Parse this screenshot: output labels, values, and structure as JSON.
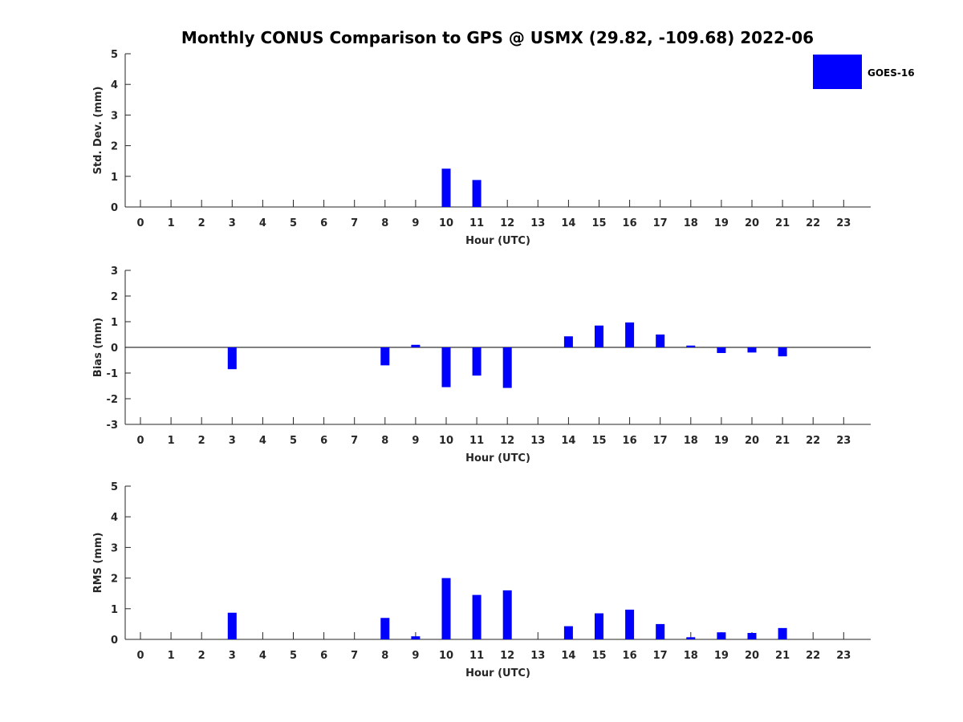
{
  "title": "Monthly CONUS Comparison to GPS @ USMX (29.82, -109.68) 2022-06",
  "legend": {
    "label": "GOES-16",
    "color": "#0000ff",
    "placement": "top-right"
  },
  "chart_data": [
    {
      "type": "bar",
      "xlabel": "Hour (UTC)",
      "ylabel": "Std. Dev. (mm)",
      "ylim": [
        0,
        5
      ],
      "yticks": [
        "0",
        "1",
        "2",
        "3",
        "4",
        "5"
      ],
      "xticks": [
        "0",
        "1",
        "2",
        "3",
        "4",
        "5",
        "6",
        "7",
        "8",
        "9",
        "10",
        "11",
        "12",
        "13",
        "14",
        "15",
        "16",
        "17",
        "18",
        "19",
        "20",
        "21",
        "22",
        "23"
      ],
      "series": [
        {
          "name": "GOES-16",
          "color": "#0000ff",
          "values": [
            null,
            null,
            null,
            0,
            null,
            null,
            null,
            null,
            0,
            0,
            1.25,
            0.88,
            0,
            null,
            0,
            0,
            0,
            0,
            0,
            0,
            0,
            0,
            null,
            null
          ]
        }
      ]
    },
    {
      "type": "bar",
      "xlabel": "Hour (UTC)",
      "ylabel": "Bias (mm)",
      "ylim": [
        -3,
        3
      ],
      "yticks": [
        "-3",
        "-2",
        "-1",
        "0",
        "1",
        "2",
        "3"
      ],
      "xticks": [
        "0",
        "1",
        "2",
        "3",
        "4",
        "5",
        "6",
        "7",
        "8",
        "9",
        "10",
        "11",
        "12",
        "13",
        "14",
        "15",
        "16",
        "17",
        "18",
        "19",
        "20",
        "21",
        "22",
        "23"
      ],
      "series": [
        {
          "name": "GOES-16",
          "color": "#0000ff",
          "values": [
            null,
            null,
            null,
            -0.85,
            null,
            null,
            null,
            null,
            -0.7,
            0.1,
            -1.55,
            -1.1,
            -1.58,
            null,
            0.43,
            0.85,
            0.97,
            0.5,
            0.07,
            -0.22,
            -0.2,
            -0.35,
            null,
            null
          ]
        }
      ]
    },
    {
      "type": "bar",
      "xlabel": "Hour (UTC)",
      "ylabel": "RMS (mm)",
      "ylim": [
        0,
        5
      ],
      "yticks": [
        "0",
        "1",
        "2",
        "3",
        "4",
        "5"
      ],
      "xticks": [
        "0",
        "1",
        "2",
        "3",
        "4",
        "5",
        "6",
        "7",
        "8",
        "9",
        "10",
        "11",
        "12",
        "13",
        "14",
        "15",
        "16",
        "17",
        "18",
        "19",
        "20",
        "21",
        "22",
        "23"
      ],
      "series": [
        {
          "name": "GOES-16",
          "color": "#0000ff",
          "values": [
            null,
            null,
            null,
            0.87,
            null,
            null,
            null,
            null,
            0.7,
            0.1,
            2.0,
            1.45,
            1.6,
            null,
            0.43,
            0.85,
            0.97,
            0.5,
            0.07,
            0.23,
            0.21,
            0.37,
            null,
            null
          ]
        }
      ]
    }
  ]
}
